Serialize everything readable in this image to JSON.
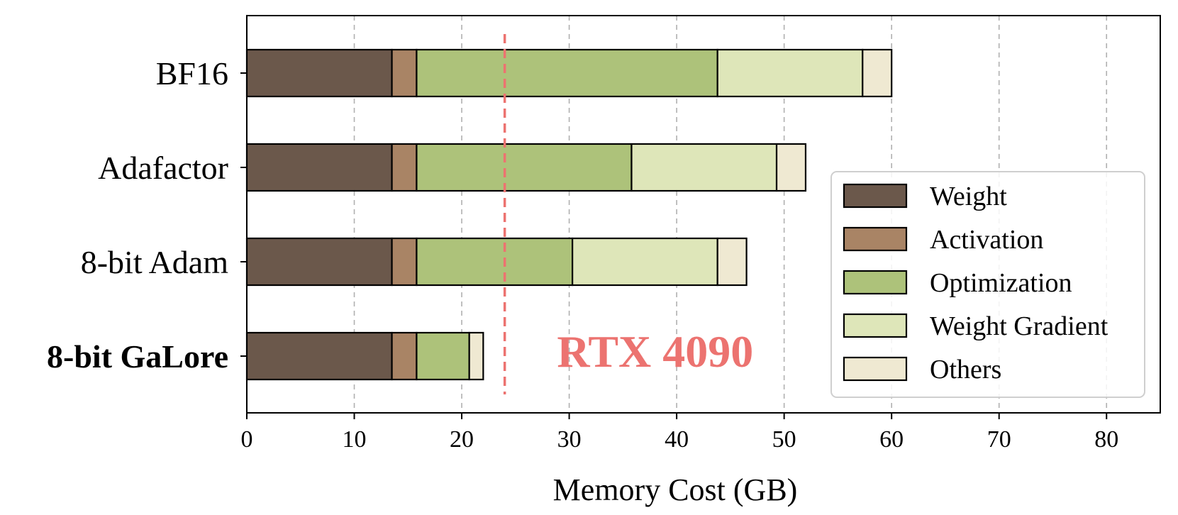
{
  "chart_data": {
    "type": "bar",
    "orientation": "horizontal",
    "stacked": true,
    "categories": [
      "BF16",
      "Adafactor",
      "8-bit Adam",
      "8-bit GaLore"
    ],
    "bold_categories": [
      "8-bit GaLore"
    ],
    "series": [
      {
        "name": "Weight",
        "color": "#6b584b",
        "values": [
          13.5,
          13.5,
          13.5,
          13.5
        ]
      },
      {
        "name": "Activation",
        "color": "#a98465",
        "values": [
          2.3,
          2.3,
          2.3,
          2.3
        ]
      },
      {
        "name": "Optimization",
        "color": "#adc27a",
        "values": [
          28.0,
          20.0,
          14.5,
          4.9
        ]
      },
      {
        "name": "Weight Gradient",
        "color": "#dee6b9",
        "values": [
          13.5,
          13.5,
          13.5,
          0
        ]
      },
      {
        "name": "Others",
        "color": "#efe9d2",
        "values": [
          2.7,
          2.7,
          2.7,
          1.3
        ]
      }
    ],
    "xlabel": "Memory Cost (GB)",
    "ylabel": "",
    "xlim": [
      0,
      85
    ],
    "xticks": [
      0,
      10,
      20,
      30,
      40,
      50,
      60,
      70,
      80
    ],
    "grid": "x-dashed",
    "legend_position": "lower-right",
    "reference_line": {
      "x": 24,
      "color": "#ec7370",
      "style": "dashed"
    },
    "annotation": {
      "text": "RTX 4090",
      "x": 38,
      "color": "#ec7370"
    }
  }
}
